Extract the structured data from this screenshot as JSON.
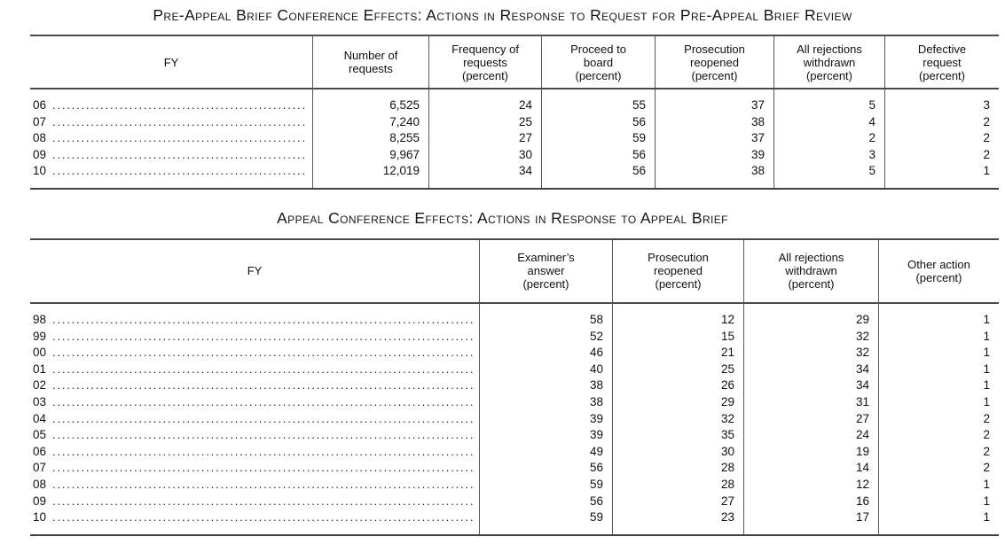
{
  "tables": [
    {
      "id": "pre-appeal",
      "title": "Pre-Appeal Brief Conference Effects: Actions in Response to Request for Pre-Appeal Brief Review",
      "columns": [
        {
          "label": "FY",
          "lines": [
            "FY"
          ]
        },
        {
          "label": "Number of requests",
          "lines": [
            "Number of",
            "requests"
          ]
        },
        {
          "label": "Frequency of requests (percent)",
          "lines": [
            "Frequency of",
            "requests",
            "(percent)"
          ]
        },
        {
          "label": "Proceed to board (percent)",
          "lines": [
            "Proceed to",
            "board",
            "(percent)"
          ]
        },
        {
          "label": "Prosecution reopened (percent)",
          "lines": [
            "Prosecution",
            "reopened",
            "(percent)"
          ]
        },
        {
          "label": "All rejections withdrawn (percent)",
          "lines": [
            "All rejections",
            "withdrawn",
            "(percent)"
          ]
        },
        {
          "label": "Defective request (percent)",
          "lines": [
            "Defective",
            "request",
            "(percent)"
          ]
        }
      ],
      "rows": [
        {
          "fy": "06",
          "values": [
            "6,525",
            "24",
            "55",
            "37",
            "5",
            "3"
          ]
        },
        {
          "fy": "07",
          "values": [
            "7,240",
            "25",
            "56",
            "38",
            "4",
            "2"
          ]
        },
        {
          "fy": "08",
          "values": [
            "8,255",
            "27",
            "59",
            "37",
            "2",
            "2"
          ]
        },
        {
          "fy": "09",
          "values": [
            "9,967",
            "30",
            "56",
            "39",
            "3",
            "2"
          ]
        },
        {
          "fy": "10",
          "values": [
            "12,019",
            "34",
            "56",
            "38",
            "5",
            "1"
          ]
        }
      ]
    },
    {
      "id": "appeal-conference",
      "title": "Appeal Conference Effects: Actions in Response to Appeal Brief",
      "columns": [
        {
          "label": "FY",
          "lines": [
            "FY"
          ]
        },
        {
          "label": "Examiner’s answer (percent)",
          "lines": [
            "Examiner’s",
            "answer",
            "(percent)"
          ]
        },
        {
          "label": "Prosecution reopened (percent)",
          "lines": [
            "Prosecution",
            "reopened",
            "(percent)"
          ]
        },
        {
          "label": "All rejections withdrawn (percent)",
          "lines": [
            "All rejections",
            "withdrawn",
            "(percent)"
          ]
        },
        {
          "label": "Other action (percent)",
          "lines": [
            "Other action",
            "(percent)"
          ]
        }
      ],
      "rows": [
        {
          "fy": "98",
          "values": [
            "58",
            "12",
            "29",
            "1"
          ]
        },
        {
          "fy": "99",
          "values": [
            "52",
            "15",
            "32",
            "1"
          ]
        },
        {
          "fy": "00",
          "values": [
            "46",
            "21",
            "32",
            "1"
          ]
        },
        {
          "fy": "01",
          "values": [
            "40",
            "25",
            "34",
            "1"
          ]
        },
        {
          "fy": "02",
          "values": [
            "38",
            "26",
            "34",
            "1"
          ]
        },
        {
          "fy": "03",
          "values": [
            "38",
            "29",
            "31",
            "1"
          ]
        },
        {
          "fy": "04",
          "values": [
            "39",
            "32",
            "27",
            "2"
          ]
        },
        {
          "fy": "05",
          "values": [
            "39",
            "35",
            "24",
            "2"
          ]
        },
        {
          "fy": "06",
          "values": [
            "49",
            "30",
            "19",
            "2"
          ]
        },
        {
          "fy": "07",
          "values": [
            "56",
            "28",
            "14",
            "2"
          ]
        },
        {
          "fy": "08",
          "values": [
            "59",
            "28",
            "12",
            "1"
          ]
        },
        {
          "fy": "09",
          "values": [
            "56",
            "27",
            "16",
            "1"
          ]
        },
        {
          "fy": "10",
          "values": [
            "59",
            "23",
            "17",
            "1"
          ]
        }
      ]
    }
  ]
}
